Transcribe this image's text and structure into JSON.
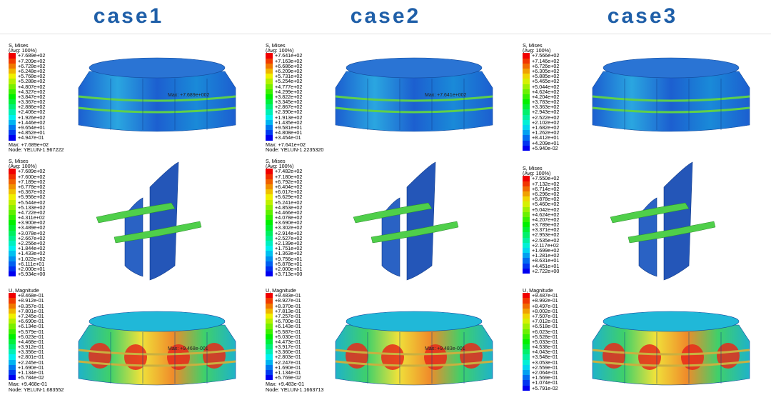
{
  "columns": [
    {
      "title": "case1",
      "panels": [
        {
          "legend_title": "S, Mises",
          "legend_subtitle": "(Avg: 100%)",
          "values": [
            "+7.689e+02",
            "+7.209e+02",
            "+6.728e+02",
            "+6.248e+02",
            "+5.768e+02",
            "+5.288e+02",
            "+4.807e+02",
            "+4.327e+02",
            "+3.847e+02",
            "+3.367e+02",
            "+2.886e+02",
            "+2.406e+02",
            "+1.926e+02",
            "+1.446e+02",
            "+9.654e+01",
            "+4.852e+01",
            "+4.947e-01"
          ],
          "max": "Max: +7.689e+02",
          "node": "Node: YELUN-1.967222",
          "annotation": "Max: +7.689e+002"
        },
        {
          "legend_title": "S, Mises",
          "legend_subtitle": "(Avg: 100%)",
          "values": [
            "+7.689e+02",
            "+7.600e+02",
            "+7.189e+02",
            "+6.778e+02",
            "+6.367e+02",
            "+5.956e+02",
            "+5.544e+02",
            "+5.133e+02",
            "+4.722e+02",
            "+4.311e+02",
            "+3.900e+02",
            "+3.489e+02",
            "+3.078e+02",
            "+2.667e+02",
            "+2.256e+02",
            "+1.844e+02",
            "+1.433e+02",
            "+1.022e+02",
            "+6.111e+01",
            "+2.000e+01",
            "+5.934e+00"
          ]
        },
        {
          "legend_title": "U, Magnitude",
          "values": [
            "+9.468e-01",
            "+8.912e-01",
            "+8.357e-01",
            "+7.801e-01",
            "+7.245e-01",
            "+6.690e-01",
            "+6.134e-01",
            "+5.579e-01",
            "+5.023e-01",
            "+4.468e-01",
            "+3.912e-01",
            "+3.356e-01",
            "+2.801e-01",
            "+2.245e-01",
            "+1.690e-01",
            "+1.134e-01",
            "+5.784e-02"
          ],
          "max": "Max: +9.468e-01",
          "node": "Node: YELUN-1.683552",
          "annotation": "Max: +9.468e-001"
        }
      ]
    },
    {
      "title": "case2",
      "panels": [
        {
          "legend_title": "S, Mises",
          "legend_subtitle": "(Avg: 100%)",
          "values": [
            "+7.641e+02",
            "+7.163e+02",
            "+6.686e+02",
            "+6.209e+02",
            "+5.731e+02",
            "+5.254e+02",
            "+4.777e+02",
            "+4.299e+02",
            "+3.822e+02",
            "+3.345e+02",
            "+2.867e+02",
            "+2.390e+02",
            "+1.913e+02",
            "+1.435e+02",
            "+9.581e+01",
            "+4.808e+01",
            "+3.454e-01"
          ],
          "max": "Max: +7.641e+02",
          "node": "Node: YELUN-1.2235320",
          "annotation": "Max: +7.641e+002"
        },
        {
          "legend_title": "S, Mises",
          "legend_subtitle": "(Avg: 100%)",
          "values": [
            "+7.482e+02",
            "+7.180e+02",
            "+6.792e+02",
            "+6.404e+02",
            "+6.017e+02",
            "+5.629e+02",
            "+5.241e+02",
            "+4.853e+02",
            "+4.466e+02",
            "+4.078e+02",
            "+3.690e+02",
            "+3.302e+02",
            "+2.914e+02",
            "+2.527e+02",
            "+2.139e+02",
            "+1.751e+02",
            "+1.363e+02",
            "+9.756e+01",
            "+5.878e+01",
            "+2.000e+01",
            "+3.713e+00"
          ]
        },
        {
          "legend_title": "U, Magnitude",
          "values": [
            "+9.483e-01",
            "+8.927e-01",
            "+8.370e-01",
            "+7.813e-01",
            "+7.257e-01",
            "+6.700e-01",
            "+6.143e-01",
            "+5.587e-01",
            "+5.030e-01",
            "+4.473e-01",
            "+3.917e-01",
            "+3.360e-01",
            "+2.803e-01",
            "+2.247e-01",
            "+1.690e-01",
            "+1.134e-01",
            "+5.769e-02"
          ],
          "max": "Max: +9.483e-01",
          "node": "Node: YELUN-1.1663713",
          "annotation": "Max: +9.483e-001"
        }
      ]
    },
    {
      "title": "case3",
      "panels": [
        {
          "legend_title": "S, Mises",
          "legend_subtitle": "(Avg: 100%)",
          "values": [
            "+7.566e+02",
            "+7.146e+02",
            "+6.726e+02",
            "+6.305e+02",
            "+5.885e+02",
            "+5.465e+02",
            "+5.044e+02",
            "+4.624e+02",
            "+4.204e+02",
            "+3.783e+02",
            "+3.363e+02",
            "+2.943e+02",
            "+2.522e+02",
            "+2.102e+02",
            "+1.682e+02",
            "+1.262e+02",
            "+8.412e+01",
            "+4.209e+01",
            "+5.940e-02"
          ]
        },
        {
          "legend_title": "S, Mises",
          "legend_subtitle": "(Avg: 100%)",
          "values": [
            "+7.550e+02",
            "+7.132e+02",
            "+6.714e+02",
            "+6.296e+02",
            "+5.878e+02",
            "+5.460e+02",
            "+5.042e+02",
            "+4.624e+02",
            "+4.207e+02",
            "+3.789e+02",
            "+3.371e+02",
            "+2.953e+02",
            "+2.535e+02",
            "+2.117e+02",
            "+1.699e+02",
            "+1.281e+02",
            "+8.631e+01",
            "+4.451e+01",
            "+2.722e+00"
          ]
        },
        {
          "legend_title": "U, Magnitude",
          "values": [
            "+9.487e-01",
            "+8.992e-01",
            "+8.497e-01",
            "+8.002e-01",
            "+7.507e-01",
            "+7.012e-01",
            "+6.518e-01",
            "+6.023e-01",
            "+5.528e-01",
            "+5.033e-01",
            "+4.538e-01",
            "+4.043e-01",
            "+3.548e-01",
            "+3.053e-01",
            "+2.559e-01",
            "+2.064e-01",
            "+1.569e-01",
            "+1.074e-01",
            "+5.791e-02"
          ]
        }
      ]
    }
  ]
}
